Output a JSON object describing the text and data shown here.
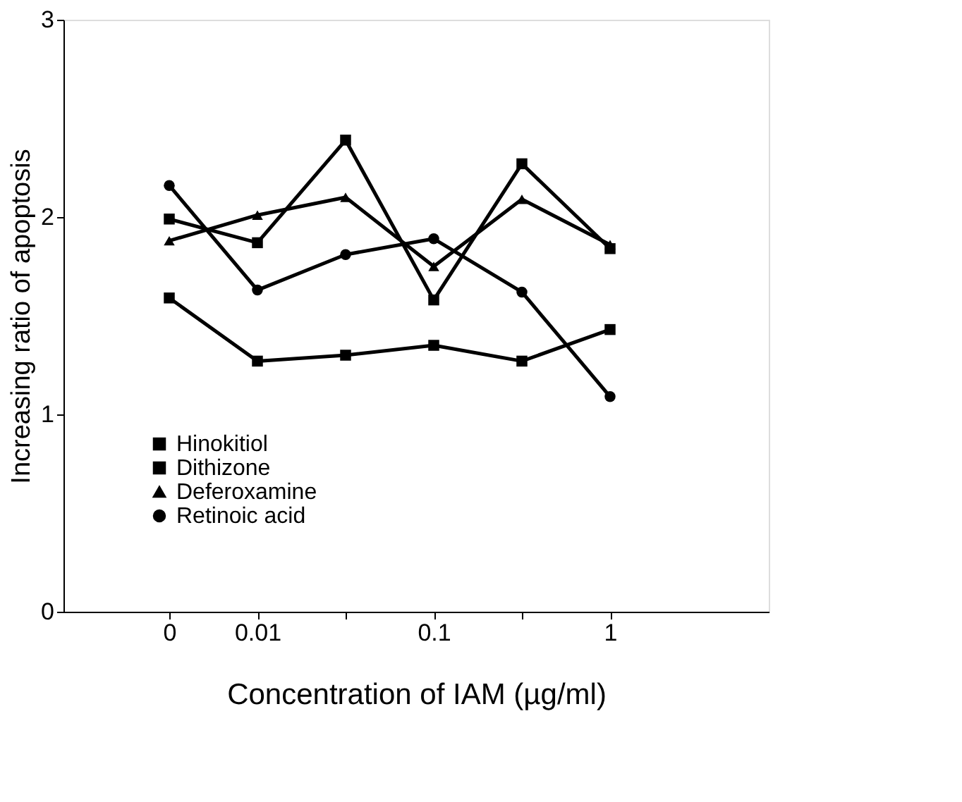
{
  "chart_data": {
    "type": "line",
    "xlabel": "Concentration of IAM (µg/ml)",
    "ylabel": "Increasing ratio of apoptosis",
    "categories": [
      "0",
      "0.01",
      null,
      "0.1",
      null,
      "1"
    ],
    "ylim": [
      0,
      3
    ],
    "yticks": [
      0,
      1,
      2,
      3
    ],
    "grid": false,
    "legend": "bottom left",
    "line_style": "solid",
    "series": [
      {
        "name": "Hinokitiol",
        "color": "#000000",
        "marker": "square",
        "values": [
          1.59,
          1.27,
          1.3,
          1.35,
          1.27,
          1.43
        ]
      },
      {
        "name": "Dithizone",
        "color": "#000000",
        "marker": "square",
        "values": [
          1.99,
          1.87,
          2.39,
          1.58,
          2.27,
          1.84
        ]
      },
      {
        "name": "Deferoxamine",
        "color": "#000000",
        "marker": "triangle",
        "values": [
          1.88,
          2.01,
          2.1,
          1.75,
          2.09,
          1.86
        ]
      },
      {
        "name": "Retinoic acid",
        "color": "#000000",
        "marker": "circle",
        "values": [
          2.16,
          1.63,
          1.81,
          1.89,
          1.62,
          1.09
        ]
      }
    ]
  }
}
